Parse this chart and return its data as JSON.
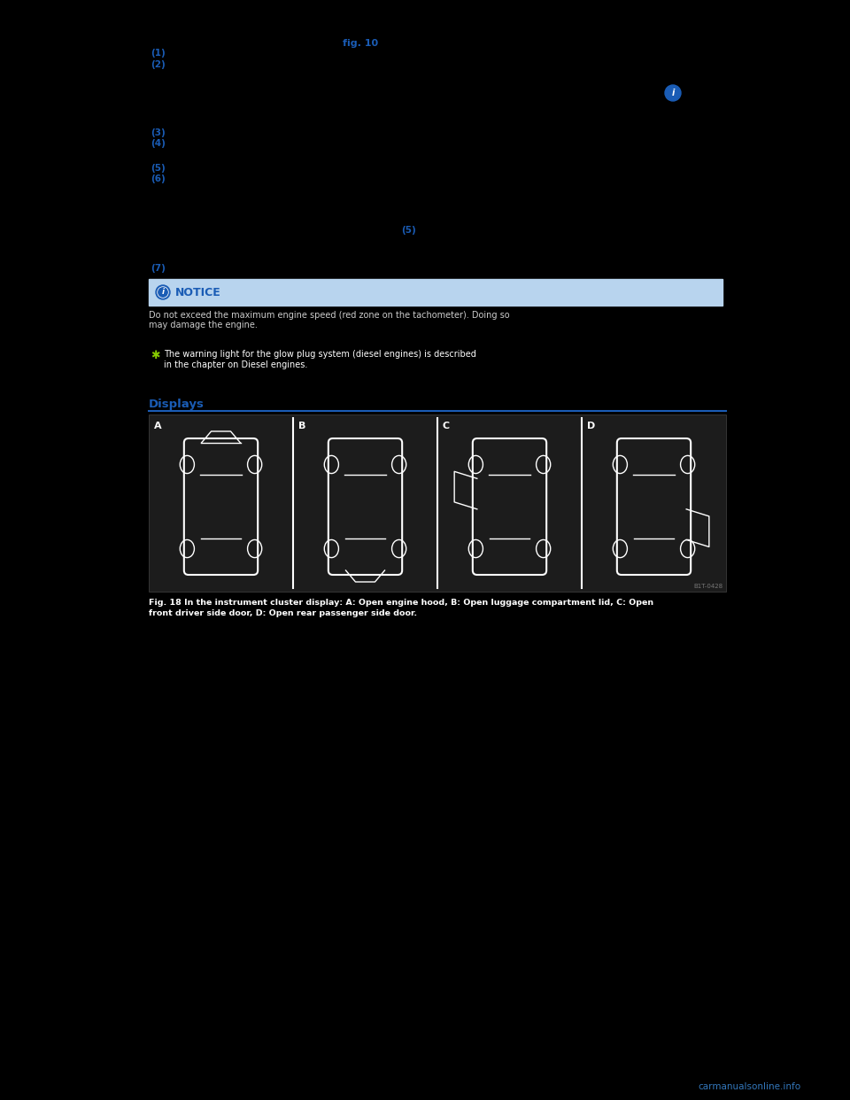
{
  "bg_color": "#000000",
  "text_color": "#ffffff",
  "blue_color": "#1a5cb5",
  "light_blue_bg": "#b8d4ee",
  "fig_label": "fig. 10",
  "watermark": "carmanualsonline.info",
  "notice_text": "NOTICE",
  "car_image_caption_line1": "Fig. 18 In the instrument cluster display: A: Open engine hood, B: Open luggage compartment lid, C: Open",
  "car_image_caption_line2": "front driver side door, D: Open rear passenger side door.",
  "displays_heading": "Displays",
  "snowflake_color": "#88cc00",
  "panel_bg": "#1c1c1c",
  "panel_divider": "#ffffff",
  "tag_color": "#cccccc",
  "body_fontsize": 7.5,
  "label_fontsize": 7.5
}
